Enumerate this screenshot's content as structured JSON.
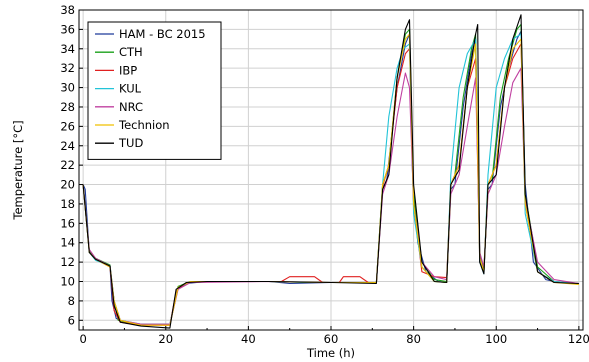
{
  "chart_data": {
    "type": "line",
    "title": "",
    "xlabel": "Time (h)",
    "ylabel": "Temperature [°C]",
    "xlim": [
      -1,
      121
    ],
    "ylim": [
      5,
      38
    ],
    "xticks": [
      0,
      20,
      40,
      60,
      80,
      100,
      120
    ],
    "yticks": [
      6,
      8,
      10,
      12,
      14,
      16,
      18,
      20,
      22,
      24,
      26,
      28,
      30,
      32,
      34,
      36,
      38
    ],
    "grid": true,
    "legend_position": "top-left",
    "series": [
      {
        "name": "HAM - BC 2015",
        "color": "#1f3a9a",
        "points": [
          [
            0,
            20
          ],
          [
            0.5,
            19.5
          ],
          [
            1.5,
            13
          ],
          [
            3,
            12.3
          ],
          [
            5,
            11.9
          ],
          [
            6.5,
            11.6
          ],
          [
            7,
            8
          ],
          [
            8,
            6.2
          ],
          [
            10,
            5.8
          ],
          [
            14,
            5.6
          ],
          [
            18,
            5.6
          ],
          [
            21,
            5.6
          ],
          [
            23,
            9.3
          ],
          [
            25,
            9.8
          ],
          [
            30,
            10
          ],
          [
            45,
            10
          ],
          [
            50,
            9.8
          ],
          [
            60,
            9.9
          ],
          [
            65,
            9.9
          ],
          [
            71,
            9.9
          ],
          [
            72.5,
            19.5
          ],
          [
            73.5,
            20.5
          ],
          [
            76,
            30
          ],
          [
            78,
            34.5
          ],
          [
            79,
            35.5
          ],
          [
            79.8,
            20
          ],
          [
            81,
            14
          ],
          [
            83,
            11
          ],
          [
            86,
            10
          ],
          [
            88,
            9.9
          ],
          [
            89,
            19.5
          ],
          [
            90,
            20
          ],
          [
            92,
            28
          ],
          [
            94,
            33.5
          ],
          [
            95,
            35
          ],
          [
            96,
            13
          ],
          [
            97,
            11.2
          ],
          [
            98,
            19.5
          ],
          [
            99,
            20
          ],
          [
            101,
            28
          ],
          [
            103,
            32
          ],
          [
            105,
            35
          ],
          [
            106,
            35.8
          ],
          [
            107,
            20
          ],
          [
            109,
            12
          ],
          [
            112,
            10.2
          ],
          [
            115,
            9.9
          ],
          [
            120,
            9.8
          ]
        ]
      },
      {
        "name": "CTH",
        "color": "#1aa01a",
        "points": [
          [
            0,
            20
          ],
          [
            1.5,
            13.2
          ],
          [
            3,
            12.4
          ],
          [
            6.5,
            11.7
          ],
          [
            7.5,
            8
          ],
          [
            8.5,
            6
          ],
          [
            12,
            5.6
          ],
          [
            21,
            5.6
          ],
          [
            23,
            9.5
          ],
          [
            26,
            10
          ],
          [
            45,
            10
          ],
          [
            55,
            9.9
          ],
          [
            71,
            9.9
          ],
          [
            72.5,
            20
          ],
          [
            74,
            22
          ],
          [
            76,
            31
          ],
          [
            78,
            35.5
          ],
          [
            79,
            36
          ],
          [
            80,
            19
          ],
          [
            82,
            12
          ],
          [
            85,
            10.2
          ],
          [
            88,
            10
          ],
          [
            89,
            20
          ],
          [
            90,
            21
          ],
          [
            92,
            29
          ],
          [
            94,
            34
          ],
          [
            95,
            35.5
          ],
          [
            96,
            12.5
          ],
          [
            97,
            11
          ],
          [
            98,
            20
          ],
          [
            99,
            20.5
          ],
          [
            101,
            29
          ],
          [
            103,
            33
          ],
          [
            105,
            36
          ],
          [
            106,
            36.5
          ],
          [
            107,
            19
          ],
          [
            110,
            11.5
          ],
          [
            114,
            10
          ],
          [
            120,
            9.8
          ]
        ]
      },
      {
        "name": "IBP",
        "color": "#e02020",
        "points": [
          [
            0,
            20
          ],
          [
            1.5,
            13
          ],
          [
            3,
            12.3
          ],
          [
            6.5,
            11.5
          ],
          [
            7.5,
            7
          ],
          [
            9,
            5.8
          ],
          [
            14,
            5.5
          ],
          [
            21,
            5.5
          ],
          [
            22.5,
            9
          ],
          [
            25,
            9.9
          ],
          [
            30,
            10
          ],
          [
            48,
            10
          ],
          [
            50,
            10.5
          ],
          [
            56,
            10.5
          ],
          [
            58,
            9.9
          ],
          [
            62,
            9.9
          ],
          [
            63,
            10.5
          ],
          [
            67,
            10.5
          ],
          [
            69,
            9.9
          ],
          [
            71,
            9.9
          ],
          [
            72.5,
            19.8
          ],
          [
            74,
            22
          ],
          [
            76,
            30
          ],
          [
            78,
            33.5
          ],
          [
            79,
            34
          ],
          [
            80,
            18
          ],
          [
            82,
            11
          ],
          [
            85,
            10.5
          ],
          [
            88,
            10.4
          ],
          [
            89,
            20
          ],
          [
            91,
            22
          ],
          [
            93,
            30
          ],
          [
            95,
            33
          ],
          [
            96,
            12
          ],
          [
            97,
            11
          ],
          [
            98,
            20
          ],
          [
            100,
            22
          ],
          [
            102,
            30
          ],
          [
            104,
            33
          ],
          [
            106,
            34.5
          ],
          [
            107,
            18
          ],
          [
            110,
            11
          ],
          [
            114,
            10
          ],
          [
            120,
            9.8
          ]
        ]
      },
      {
        "name": "KUL",
        "color": "#22c4d8",
        "points": [
          [
            0,
            20
          ],
          [
            1.5,
            13
          ],
          [
            3,
            12.2
          ],
          [
            6.5,
            11.6
          ],
          [
            7.5,
            8
          ],
          [
            9,
            6
          ],
          [
            14,
            5.6
          ],
          [
            21,
            5.6
          ],
          [
            23,
            9.4
          ],
          [
            26,
            10
          ],
          [
            45,
            10
          ],
          [
            60,
            9.9
          ],
          [
            71,
            9.9
          ],
          [
            72.5,
            20
          ],
          [
            74,
            27
          ],
          [
            76,
            32
          ],
          [
            77.5,
            34
          ],
          [
            79,
            34.5
          ],
          [
            80,
            17
          ],
          [
            82,
            11.5
          ],
          [
            85,
            10
          ],
          [
            88,
            9.9
          ],
          [
            89,
            21
          ],
          [
            91,
            30
          ],
          [
            93,
            33.5
          ],
          [
            95,
            35
          ],
          [
            96,
            12
          ],
          [
            97,
            10.8
          ],
          [
            98,
            21
          ],
          [
            100,
            30
          ],
          [
            102,
            33
          ],
          [
            104,
            35
          ],
          [
            106,
            35.5
          ],
          [
            107,
            17
          ],
          [
            110,
            11
          ],
          [
            114,
            10
          ],
          [
            120,
            9.8
          ]
        ]
      },
      {
        "name": "NRC",
        "color": "#c040a0",
        "points": [
          [
            0,
            20
          ],
          [
            1.5,
            13.3
          ],
          [
            3,
            12.4
          ],
          [
            6.5,
            11.6
          ],
          [
            7.5,
            8
          ],
          [
            9,
            6
          ],
          [
            14,
            5.6
          ],
          [
            21,
            5.6
          ],
          [
            23,
            9.2
          ],
          [
            26,
            9.9
          ],
          [
            45,
            10
          ],
          [
            60,
            9.9
          ],
          [
            71,
            9.9
          ],
          [
            72.5,
            19
          ],
          [
            74,
            21
          ],
          [
            76,
            27
          ],
          [
            78,
            31.5
          ],
          [
            79,
            30
          ],
          [
            80,
            18
          ],
          [
            82,
            12
          ],
          [
            85,
            10.5
          ],
          [
            88,
            10.2
          ],
          [
            89,
            19
          ],
          [
            91,
            21
          ],
          [
            93,
            26
          ],
          [
            95,
            31
          ],
          [
            96,
            13
          ],
          [
            97,
            11.5
          ],
          [
            98,
            19
          ],
          [
            100,
            21
          ],
          [
            102,
            26
          ],
          [
            104,
            30.5
          ],
          [
            106,
            32
          ],
          [
            107,
            18.5
          ],
          [
            110,
            12
          ],
          [
            114,
            10.2
          ],
          [
            120,
            9.8
          ]
        ]
      },
      {
        "name": "Technion",
        "color": "#f0c000",
        "points": [
          [
            0,
            20
          ],
          [
            1.5,
            13
          ],
          [
            3,
            12.3
          ],
          [
            6.5,
            11.5
          ],
          [
            7.5,
            8
          ],
          [
            9,
            6
          ],
          [
            14,
            5.5
          ],
          [
            21,
            5.5
          ],
          [
            23,
            9.4
          ],
          [
            26,
            10
          ],
          [
            45,
            10
          ],
          [
            60,
            9.9
          ],
          [
            71,
            9.9
          ],
          [
            72.5,
            20
          ],
          [
            74,
            22
          ],
          [
            76,
            31
          ],
          [
            78,
            35
          ],
          [
            79,
            35.5
          ],
          [
            80,
            18
          ],
          [
            82,
            11.5
          ],
          [
            85,
            10
          ],
          [
            88,
            9.9
          ],
          [
            89,
            20
          ],
          [
            91,
            22
          ],
          [
            93,
            30
          ],
          [
            95,
            34.5
          ],
          [
            96,
            12.5
          ],
          [
            97,
            11
          ],
          [
            98,
            20
          ],
          [
            100,
            22
          ],
          [
            102,
            30
          ],
          [
            104,
            34
          ],
          [
            106,
            35
          ],
          [
            107,
            18
          ],
          [
            110,
            11
          ],
          [
            114,
            9.9
          ],
          [
            120,
            9.7
          ]
        ]
      },
      {
        "name": "TUD",
        "color": "#000000",
        "points": [
          [
            0,
            20
          ],
          [
            1.5,
            13
          ],
          [
            3,
            12.3
          ],
          [
            6.5,
            11.6
          ],
          [
            7.5,
            7.5
          ],
          [
            9,
            5.8
          ],
          [
            14,
            5.4
          ],
          [
            21,
            5.2
          ],
          [
            22.5,
            9.2
          ],
          [
            25,
            9.9
          ],
          [
            30,
            10
          ],
          [
            45,
            10
          ],
          [
            60,
            9.9
          ],
          [
            71,
            9.8
          ],
          [
            72.5,
            19.5
          ],
          [
            74,
            21
          ],
          [
            76,
            31
          ],
          [
            78,
            36
          ],
          [
            79,
            37
          ],
          [
            80,
            20
          ],
          [
            82,
            12
          ],
          [
            85,
            10
          ],
          [
            88,
            9.9
          ],
          [
            89,
            20
          ],
          [
            91,
            21.5
          ],
          [
            93,
            30
          ],
          [
            95,
            35.5
          ],
          [
            95.5,
            36.5
          ],
          [
            96,
            12
          ],
          [
            97,
            10.8
          ],
          [
            98,
            20
          ],
          [
            100,
            21
          ],
          [
            102,
            30
          ],
          [
            104,
            35
          ],
          [
            106,
            37.5
          ],
          [
            107,
            19
          ],
          [
            110,
            11
          ],
          [
            114,
            9.9
          ],
          [
            120,
            9.8
          ]
        ]
      }
    ]
  }
}
